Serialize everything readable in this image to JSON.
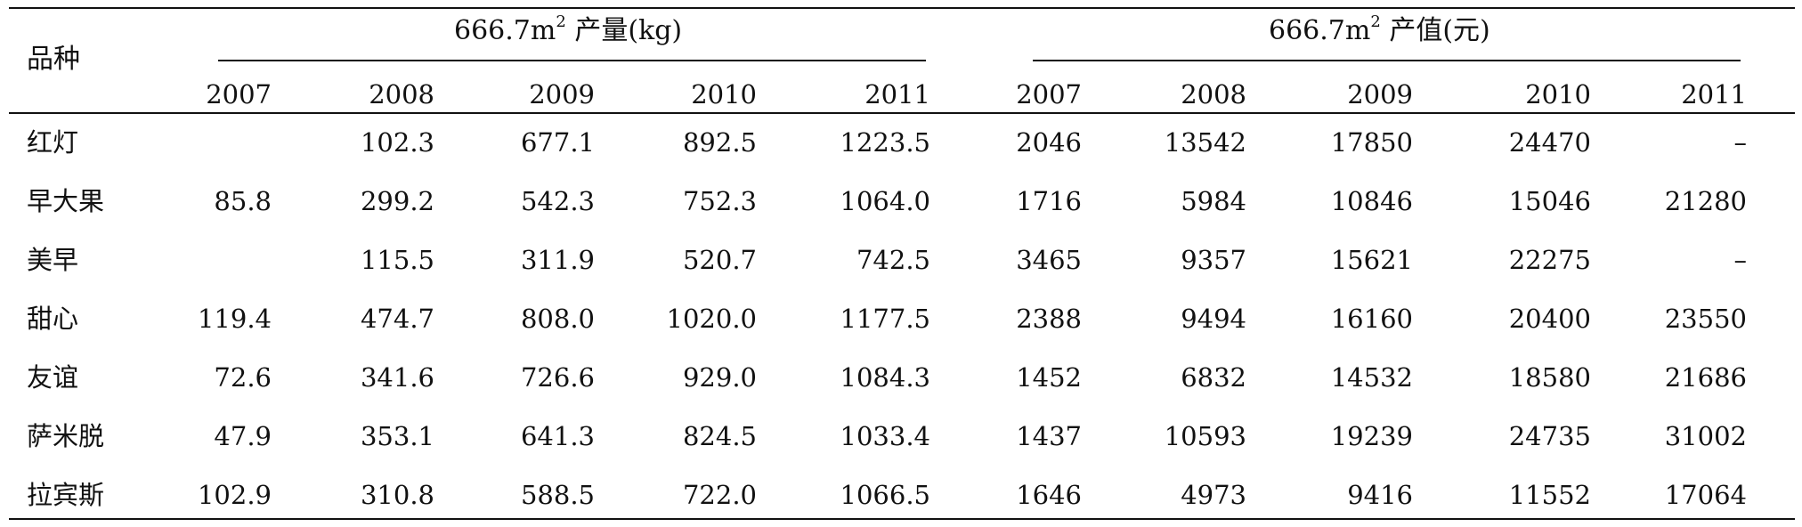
{
  "table": {
    "row_header": "品种",
    "group1": {
      "prefix": "666.7m",
      "sup": "2",
      "suffix": " 产量(kg)"
    },
    "group2": {
      "prefix": "666.7m",
      "sup": "2",
      "suffix": " 产值(元)"
    },
    "years": [
      "2007",
      "2008",
      "2009",
      "2010",
      "2011"
    ],
    "rows": [
      {
        "name": "红灯",
        "yield": [
          "",
          "102.3",
          "677.1",
          "892.5",
          "1223.5"
        ],
        "value": [
          "2046",
          "13542",
          "17850",
          "24470",
          "–"
        ]
      },
      {
        "name": "早大果",
        "yield": [
          "85.8",
          "299.2",
          "542.3",
          "752.3",
          "1064.0"
        ],
        "value": [
          "1716",
          "5984",
          "10846",
          "15046",
          "21280"
        ]
      },
      {
        "name": "美早",
        "yield": [
          "",
          "115.5",
          "311.9",
          "520.7",
          "742.5"
        ],
        "value": [
          "3465",
          "9357",
          "15621",
          "22275",
          "–"
        ]
      },
      {
        "name": "甜心",
        "yield": [
          "119.4",
          "474.7",
          "808.0",
          "1020.0",
          "1177.5"
        ],
        "value": [
          "2388",
          "9494",
          "16160",
          "20400",
          "23550"
        ]
      },
      {
        "name": "友谊",
        "yield": [
          "72.6",
          "341.6",
          "726.6",
          "929.0",
          "1084.3"
        ],
        "value": [
          "1452",
          "6832",
          "14532",
          "18580",
          "21686"
        ]
      },
      {
        "name": "萨米脱",
        "yield": [
          "47.9",
          "353.1",
          "641.3",
          "824.5",
          "1033.4"
        ],
        "value": [
          "1437",
          "10593",
          "19239",
          "24735",
          "31002"
        ]
      },
      {
        "name": "拉宾斯",
        "yield": [
          "102.9",
          "310.8",
          "588.5",
          "722.0",
          "1066.5"
        ],
        "value": [
          "1646",
          "4973",
          "9416",
          "11552",
          "17064"
        ]
      }
    ]
  }
}
